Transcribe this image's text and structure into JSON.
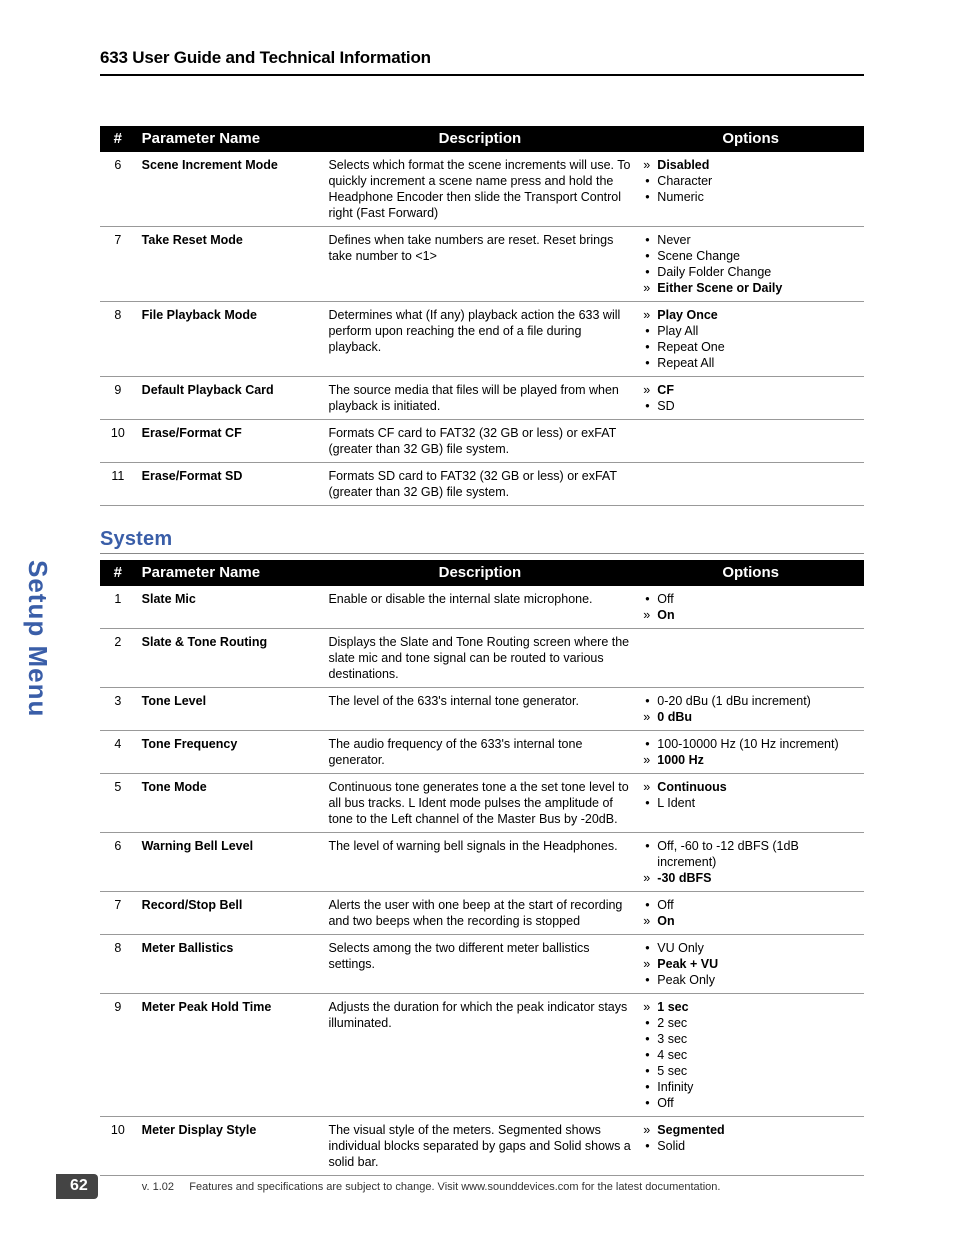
{
  "header": {
    "title": "633 User Guide and Technical Information"
  },
  "side_label": "Setup Menu",
  "table1": {
    "headers": {
      "num": "#",
      "name": "Parameter Name",
      "desc": "Description",
      "opt": "Options"
    },
    "rows": [
      {
        "num": "6",
        "name": "Scene Increment Mode",
        "desc": "Selects which format the scene increments will use. To quickly increment a scene name press and hold the Headphone Encoder then slide the Transport Control right (Fast Forward)",
        "opts": [
          {
            "label": "Disabled",
            "sel": true
          },
          {
            "label": "Character",
            "sel": false
          },
          {
            "label": "Numeric",
            "sel": false
          }
        ]
      },
      {
        "num": "7",
        "name": "Take Reset Mode",
        "desc": "Defines when take numbers are reset. Reset brings take number to <1>",
        "opts": [
          {
            "label": "Never",
            "sel": false
          },
          {
            "label": "Scene Change",
            "sel": false
          },
          {
            "label": "Daily Folder Change",
            "sel": false
          },
          {
            "label": "Either Scene or Daily",
            "sel": true
          }
        ]
      },
      {
        "num": "8",
        "name": "File Playback Mode",
        "desc": "Determines what (If any) playback action the 633 will perform upon reaching the end of a file during playback.",
        "opts": [
          {
            "label": "Play Once",
            "sel": true
          },
          {
            "label": "Play All",
            "sel": false
          },
          {
            "label": "Repeat One",
            "sel": false
          },
          {
            "label": "Repeat All",
            "sel": false
          }
        ]
      },
      {
        "num": "9",
        "name": "Default Playback Card",
        "desc": "The source media that files will be played from when playback is initiated.",
        "opts": [
          {
            "label": "CF",
            "sel": true
          },
          {
            "label": "SD",
            "sel": false
          }
        ]
      },
      {
        "num": "10",
        "name": "Erase/Format CF",
        "desc": "Formats CF card to FAT32 (32 GB or less) or exFAT (greater than 32 GB) file system.",
        "opts": []
      },
      {
        "num": "11",
        "name": "Erase/Format SD",
        "desc": "Formats SD card to FAT32 (32 GB or less) or exFAT (greater than 32 GB) file system.",
        "opts": []
      }
    ]
  },
  "subhead": "System",
  "table2": {
    "headers": {
      "num": "#",
      "name": "Parameter Name",
      "desc": "Description",
      "opt": "Options"
    },
    "rows": [
      {
        "num": "1",
        "name": "Slate Mic",
        "desc": "Enable or disable the internal slate microphone.",
        "opts": [
          {
            "label": "Off",
            "sel": false
          },
          {
            "label": "On",
            "sel": true
          }
        ]
      },
      {
        "num": "2",
        "name": "Slate & Tone Routing",
        "desc": "Displays the Slate and Tone Routing screen where the slate mic and tone signal can be routed to various destinations.",
        "opts": []
      },
      {
        "num": "3",
        "name": "Tone Level",
        "desc": "The level of the 633's internal tone generator.",
        "opts": [
          {
            "label": "0-20 dBu (1 dBu increment)",
            "sel": false
          },
          {
            "label": "0 dBu",
            "sel": true
          }
        ]
      },
      {
        "num": "4",
        "name": "Tone Frequency",
        "desc": "The audio frequency of the 633's internal tone generator.",
        "opts": [
          {
            "label": "100-10000 Hz (10 Hz increment)",
            "sel": false
          },
          {
            "label": "1000 Hz",
            "sel": true
          }
        ]
      },
      {
        "num": "5",
        "name": "Tone Mode",
        "desc": "Continuous tone generates tone a the set tone level to all bus tracks. L Ident mode pulses the amplitude of tone to the Left channel of the Master Bus by -20dB.",
        "opts": [
          {
            "label": "Continuous",
            "sel": true
          },
          {
            "label": "L Ident",
            "sel": false
          }
        ]
      },
      {
        "num": "6",
        "name": "Warning Bell Level",
        "desc": "The level of warning bell signals in the Headphones.",
        "opts": [
          {
            "label": "Off, -60 to -12 dBFS (1dB increment)",
            "sel": false
          },
          {
            "label": "-30 dBFS",
            "sel": true
          }
        ]
      },
      {
        "num": "7",
        "name": "Record/Stop Bell",
        "desc": "Alerts the user with one beep at the start of recording and two beeps when the recording is stopped",
        "opts": [
          {
            "label": "Off",
            "sel": false
          },
          {
            "label": "On",
            "sel": true
          }
        ]
      },
      {
        "num": "8",
        "name": "Meter Ballistics",
        "desc": "Selects among the two different meter ballistics settings.",
        "opts": [
          {
            "label": "VU Only",
            "sel": false
          },
          {
            "label": "Peak + VU",
            "sel": true
          },
          {
            "label": "Peak Only",
            "sel": false
          }
        ]
      },
      {
        "num": "9",
        "name": "Meter Peak Hold Time",
        "desc": "Adjusts the duration for which the peak indicator stays illuminated.",
        "opts": [
          {
            "label": "1 sec",
            "sel": true
          },
          {
            "label": "2 sec",
            "sel": false
          },
          {
            "label": "3 sec",
            "sel": false
          },
          {
            "label": "4 sec",
            "sel": false
          },
          {
            "label": "5 sec",
            "sel": false
          },
          {
            "label": "Infinity",
            "sel": false
          },
          {
            "label": "Off",
            "sel": false
          }
        ]
      },
      {
        "num": "10",
        "name": "Meter Display Style",
        "desc": "The visual style of the meters. Segmented shows individual blocks separated by gaps and Solid shows a solid bar.",
        "opts": [
          {
            "label": "Segmented",
            "sel": true
          },
          {
            "label": "Solid",
            "sel": false
          }
        ]
      }
    ]
  },
  "footer": {
    "page_number": "62",
    "version": "v. 1.02",
    "note": "Features and specifications are subject to change. Visit www.sounddevices.com for the latest documentation."
  }
}
